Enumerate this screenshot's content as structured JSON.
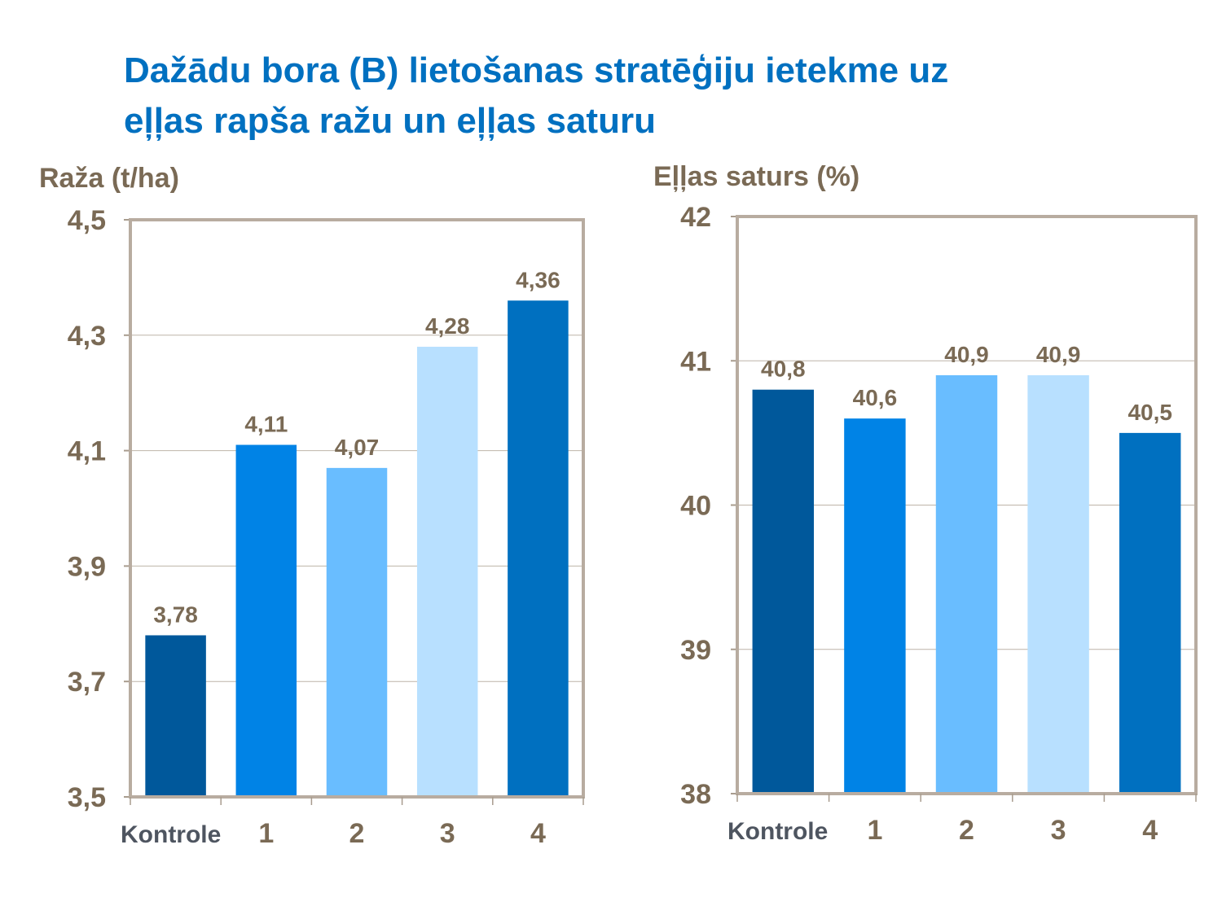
{
  "title_lines": [
    "Dažādu bora (B) lietošanas stratēģiju ietekme uz",
    "eļļas rapša ražu un eļļas saturu"
  ],
  "chart_data": [
    {
      "type": "bar",
      "ylabel": "Raža (t/ha)",
      "categories": [
        "Kontrole",
        "1",
        "2",
        "3",
        "4"
      ],
      "values": [
        3.78,
        4.11,
        4.07,
        4.28,
        4.36
      ],
      "data_labels": [
        "3,78",
        "4,11",
        "4,07",
        "4,28",
        "4,36"
      ],
      "ylim": [
        3.5,
        4.5
      ],
      "yticks": [
        3.5,
        3.7,
        3.9,
        4.1,
        4.3,
        4.5
      ],
      "ytick_labels": [
        "3,5",
        "3,7",
        "3,9",
        "4,1",
        "4,3",
        "4,5"
      ],
      "grid": true,
      "colors": [
        "#00589B",
        "#0083E6",
        "#69BDFF",
        "#B8E0FF",
        "#0070C0"
      ]
    },
    {
      "type": "bar",
      "ylabel": "Eļļas saturs (%)",
      "categories": [
        "Kontrole",
        "1",
        "2",
        "3",
        "4"
      ],
      "values": [
        40.8,
        40.6,
        40.9,
        40.9,
        40.5
      ],
      "data_labels": [
        "40,8",
        "40,6",
        "40,9",
        "40,9",
        "40,5"
      ],
      "ylim": [
        38,
        42
      ],
      "yticks": [
        38,
        39,
        40,
        41,
        42
      ],
      "ytick_labels": [
        "38",
        "39",
        "40",
        "41",
        "42"
      ],
      "grid": true,
      "colors": [
        "#00589B",
        "#0083E6",
        "#69BDFF",
        "#B8E0FF",
        "#0070C0"
      ]
    }
  ]
}
